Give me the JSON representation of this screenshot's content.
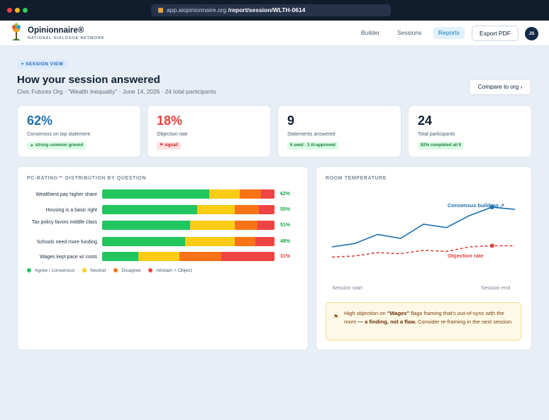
{
  "browser": {
    "domain": "app.aiopinionnaire.org",
    "path": " /report/session/WLTH-0614"
  },
  "header": {
    "brand": "Opinionnaire®",
    "brand_sub": "NATIONAL DIALOGUE NETWORK",
    "nav": [
      "Builder",
      "Sessions",
      "Reports"
    ],
    "export_label": "Export PDF",
    "avatar_initials": "JS"
  },
  "page": {
    "pill": "▾ SESSION VIEW",
    "title": "How your session answered",
    "subtitle": "Civic Futures Org · \"Wealth Inequality\" · June 14, 2026 · 24 total participants",
    "compare_label": "Compare to org ›"
  },
  "stats": [
    {
      "value": "62%",
      "label": "Consensus on top statement",
      "badge": "▲ strong common ground",
      "value_color": "#1d6fb0",
      "badge_bg": "#dcfce7",
      "badge_color": "#15803d"
    },
    {
      "value": "18%",
      "label": "Objection rate",
      "badge": "⚑ signal!",
      "value_color": "#e0413d",
      "badge_bg": "#fee2e2",
      "badge_color": "#c2261f"
    },
    {
      "value": "9",
      "label": "Statements answered",
      "badge": "6 seed · 3 AI-approved",
      "value_color": "#0f1f33",
      "badge_bg": "#dcfce7",
      "badge_color": "#15803d"
    },
    {
      "value": "24",
      "label": "Total participants",
      "badge": "92% completed all 9",
      "value_color": "#0f1f33",
      "badge_bg": "#dcfce7",
      "badge_color": "#15803d"
    }
  ],
  "distribution": {
    "title": "PC-RATING™ DISTRIBUTION BY QUESTION",
    "rows": [
      {
        "label": "Wealthiest pay higher share",
        "pct": "62%",
        "pct_color": "#16a34a",
        "segments": [
          0.62,
          0.18,
          0.12,
          0.08
        ]
      },
      {
        "label": "Housing is a basic right",
        "pct": "55%",
        "pct_color": "#16a34a",
        "segments": [
          0.55,
          0.22,
          0.14,
          0.09
        ]
      },
      {
        "label": "Tax policy favors middle class",
        "pct": "51%",
        "pct_color": "#16a34a",
        "segments": [
          0.51,
          0.26,
          0.13,
          0.1
        ]
      },
      {
        "label": "Schools need more funding",
        "pct": "48%",
        "pct_color": "#16a34a",
        "segments": [
          0.48,
          0.29,
          0.12,
          0.11
        ]
      },
      {
        "label": "Wages kept pace w/ costs",
        "pct": "31%",
        "pct_color": "#e0413d",
        "segments": [
          0.21,
          0.24,
          0.24,
          0.31
        ]
      }
    ],
    "segment_colors": [
      "#22c55e",
      "#facc15",
      "#f97316",
      "#ef4444"
    ],
    "legend": [
      "Agree / consensus",
      "Neutral",
      "Disagree",
      "Abstain + Object"
    ]
  },
  "temperature": {
    "title": "ROOM TEMPERATURE",
    "consensus_label": "Consensus building ↗",
    "objection_label": "Objection rate",
    "x_start": "Session start",
    "x_end": "Session end",
    "note_prefix": "High objection on ",
    "note_topic": "\"Wages\"",
    "note_mid": " flags framing that's out-of-sync with the room ",
    "note_bold": "— a finding, not a flaw.",
    "note_suffix": " Consider re-framing in the next session."
  },
  "chart_data": {
    "type": "line",
    "title": "ROOM TEMPERATURE",
    "xlabel": "",
    "ylabel": "",
    "x": [
      "Session start",
      "",
      "",
      "",
      "",
      "",
      "",
      "",
      "Session end"
    ],
    "series": [
      {
        "name": "Consensus building",
        "color": "#1d6fb0",
        "style": "solid",
        "values": [
          0.3,
          0.36,
          0.52,
          0.45,
          0.7,
          0.64,
          0.85,
          1.0,
          0.96
        ]
      },
      {
        "name": "Objection rate",
        "color": "#e0413d",
        "style": "dashed",
        "values": [
          0.12,
          0.14,
          0.2,
          0.18,
          0.24,
          0.22,
          0.3,
          0.32,
          0.32
        ]
      }
    ],
    "grid": false
  }
}
